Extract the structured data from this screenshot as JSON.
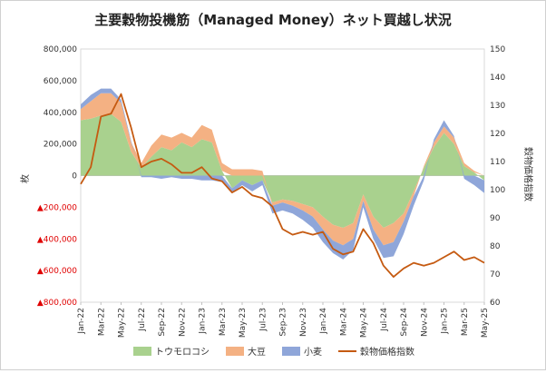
{
  "chart_data": {
    "type": "area",
    "title": "主要穀物投機筋（Managed Money）ネット買越し状況",
    "ylabel_left": "枚",
    "ylabel_right": "穀物価格指数",
    "ylim_left": [
      -800000,
      800000
    ],
    "ylim_right": [
      60,
      150
    ],
    "left_ticks": [
      "800,000",
      "600,000",
      "400,000",
      "200,000",
      "0",
      "▲200,000",
      "▲400,000",
      "▲600,000",
      "▲800,000"
    ],
    "right_ticks": [
      "150",
      "140",
      "130",
      "120",
      "110",
      "100",
      "90",
      "80",
      "70",
      "60"
    ],
    "x_labels": [
      "Jan-22",
      "Mar-22",
      "May-22",
      "Jul-22",
      "Sep-22",
      "Nov-22",
      "Jan-23",
      "Mar-23",
      "May-23",
      "Jul-23",
      "Sep-23",
      "Nov-23",
      "Jan-24",
      "Mar-24",
      "May-24",
      "Jul-24",
      "Sep-24",
      "Nov-24",
      "Jan-25",
      "Mar-25",
      "May-25"
    ],
    "x": [
      "2022-01",
      "2022-02",
      "2022-03",
      "2022-04",
      "2022-05",
      "2022-06",
      "2022-07",
      "2022-08",
      "2022-09",
      "2022-10",
      "2022-11",
      "2022-12",
      "2023-01",
      "2023-02",
      "2023-03",
      "2023-04",
      "2023-05",
      "2023-06",
      "2023-07",
      "2023-08",
      "2023-09",
      "2023-10",
      "2023-11",
      "2023-12",
      "2024-01",
      "2024-02",
      "2024-03",
      "2024-04",
      "2024-05",
      "2024-06",
      "2024-07",
      "2024-08",
      "2024-09",
      "2024-10",
      "2024-11",
      "2024-12",
      "2025-01",
      "2025-02",
      "2025-03",
      "2025-04",
      "2025-05"
    ],
    "series": [
      {
        "name": "トウモロコシ",
        "color": "#a9d18e",
        "kind": "stacked-area",
        "values": [
          350000,
          360000,
          380000,
          390000,
          340000,
          150000,
          50000,
          120000,
          180000,
          160000,
          210000,
          180000,
          230000,
          210000,
          30000,
          -80000,
          -30000,
          -60000,
          -30000,
          -170000,
          -150000,
          -160000,
          -180000,
          -200000,
          -260000,
          -310000,
          -330000,
          -300000,
          -120000,
          -260000,
          -330000,
          -300000,
          -240000,
          -100000,
          50000,
          180000,
          270000,
          200000,
          60000,
          20000,
          -30000
        ]
      },
      {
        "name": "大豆",
        "color": "#f4b183",
        "kind": "stacked-area",
        "values": [
          70000,
          110000,
          140000,
          130000,
          120000,
          60000,
          30000,
          70000,
          80000,
          80000,
          60000,
          60000,
          90000,
          80000,
          50000,
          40000,
          40000,
          40000,
          30000,
          -20000,
          -20000,
          -30000,
          -40000,
          -60000,
          -80000,
          -100000,
          -110000,
          -100000,
          -40000,
          -80000,
          -110000,
          -120000,
          -50000,
          -30000,
          10000,
          30000,
          40000,
          40000,
          20000,
          10000,
          0
        ]
      },
      {
        "name": "小麦",
        "color": "#8fa6d9",
        "kind": "stacked-area",
        "values": [
          30000,
          40000,
          30000,
          30000,
          20000,
          10000,
          -10000,
          -10000,
          -20000,
          -10000,
          -20000,
          -20000,
          -30000,
          -30000,
          -40000,
          -30000,
          -30000,
          -40000,
          -30000,
          -50000,
          -50000,
          -50000,
          -60000,
          -70000,
          -80000,
          -80000,
          -90000,
          -70000,
          -40000,
          -60000,
          -80000,
          -90000,
          -80000,
          -60000,
          -30000,
          20000,
          40000,
          10000,
          -20000,
          -60000,
          -80000
        ]
      },
      {
        "name": "穀物価格指数",
        "color": "#c55a11",
        "kind": "line",
        "axis": "right",
        "values": [
          102,
          108,
          126,
          127,
          134,
          122,
          108,
          110,
          111,
          109,
          106,
          106,
          108,
          104,
          103,
          99,
          101,
          98,
          97,
          94,
          86,
          84,
          85,
          84,
          85,
          79,
          77,
          78,
          86,
          81,
          73,
          69,
          72,
          74,
          73,
          74,
          76,
          78,
          75,
          76,
          74
        ]
      }
    ]
  }
}
